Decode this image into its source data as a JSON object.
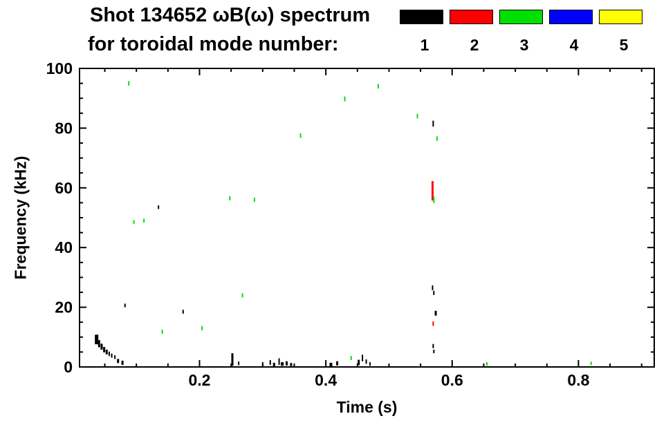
{
  "title": {
    "line1": "Shot 134652 ωB(ω) spectrum",
    "line2": "for toroidal mode number:"
  },
  "legend": {
    "entries": [
      {
        "label": "1",
        "color": "#000000"
      },
      {
        "label": "2",
        "color": "#ff0000"
      },
      {
        "label": "3",
        "color": "#00e000"
      },
      {
        "label": "4",
        "color": "#0000ff"
      },
      {
        "label": "5",
        "color": "#ffff00"
      }
    ]
  },
  "chart_data": {
    "type": "scatter",
    "title": "Shot 134652 ωB(ω) spectrum for toroidal mode number:",
    "xlabel": "Time (s)",
    "ylabel": "Frequency (kHz)",
    "xlim": [
      0.01,
      0.92
    ],
    "ylim": [
      0,
      100
    ],
    "xticks": [
      0.2,
      0.4,
      0.6,
      0.8
    ],
    "yticks": [
      0,
      20,
      40,
      60,
      80,
      100
    ],
    "x_minor_step": 0.05,
    "y_minor_step": 5,
    "grid": false,
    "legend_position": "top-right",
    "point_format": "[time_s, freq_kHz, extent_kHz, width_px]",
    "series": [
      {
        "name": "n=1",
        "color": "#000000",
        "points": [
          [
            0.037,
            9.2,
            3.2,
            5
          ],
          [
            0.041,
            7.8,
            2.4,
            3
          ],
          [
            0.045,
            6.8,
            2.0,
            3
          ],
          [
            0.049,
            5.8,
            1.8,
            3
          ],
          [
            0.053,
            5.0,
            1.6,
            3
          ],
          [
            0.057,
            4.4,
            1.5,
            2
          ],
          [
            0.061,
            3.8,
            1.4,
            2
          ],
          [
            0.066,
            3.3,
            1.3,
            2
          ],
          [
            0.071,
            2.0,
            1.4,
            3
          ],
          [
            0.078,
            1.4,
            1.4,
            3
          ],
          [
            0.082,
            20.6,
            1.2,
            2
          ],
          [
            0.135,
            53.5,
            1.2,
            2
          ],
          [
            0.174,
            18.5,
            1.3,
            2
          ],
          [
            0.252,
            2.5,
            4.2,
            3
          ],
          [
            0.262,
            1.2,
            1.2,
            2
          ],
          [
            0.3,
            1.0,
            1.2,
            2
          ],
          [
            0.312,
            1.5,
            1.6,
            2
          ],
          [
            0.318,
            0.8,
            1.2,
            3
          ],
          [
            0.326,
            1.8,
            2.2,
            2
          ],
          [
            0.331,
            1.0,
            1.2,
            4
          ],
          [
            0.338,
            1.2,
            1.4,
            3
          ],
          [
            0.345,
            0.8,
            1.0,
            3
          ],
          [
            0.408,
            0.8,
            1.2,
            4
          ],
          [
            0.418,
            1.2,
            1.4,
            3
          ],
          [
            0.452,
            1.5,
            1.8,
            3
          ],
          [
            0.458,
            3.0,
            2.2,
            2
          ],
          [
            0.464,
            1.8,
            1.5,
            2
          ],
          [
            0.47,
            1.0,
            1.2,
            2
          ],
          [
            0.57,
            81.5,
            2.0,
            2
          ],
          [
            0.569,
            26.5,
            1.6,
            2
          ],
          [
            0.571,
            24.8,
            1.4,
            2
          ],
          [
            0.574,
            18.0,
            1.6,
            3
          ],
          [
            0.57,
            7.0,
            1.4,
            2
          ],
          [
            0.571,
            5.2,
            1.2,
            2
          ]
        ]
      },
      {
        "name": "n=2",
        "color": "#ff0000",
        "points": [
          [
            0.569,
            59.0,
            6.5,
            3
          ],
          [
            0.57,
            14.5,
            1.5,
            2
          ]
        ]
      },
      {
        "name": "n=3",
        "color": "#00e000",
        "points": [
          [
            0.088,
            95.0,
            1.5,
            2
          ],
          [
            0.096,
            48.5,
            1.3,
            2
          ],
          [
            0.112,
            49.0,
            1.3,
            2
          ],
          [
            0.141,
            11.8,
            1.4,
            2
          ],
          [
            0.204,
            13.0,
            1.4,
            2
          ],
          [
            0.248,
            56.5,
            1.4,
            2
          ],
          [
            0.268,
            24.0,
            1.4,
            2
          ],
          [
            0.287,
            56.0,
            1.4,
            2
          ],
          [
            0.36,
            77.5,
            1.5,
            2
          ],
          [
            0.44,
            3.0,
            1.4,
            2
          ],
          [
            0.43,
            89.8,
            1.6,
            2
          ],
          [
            0.483,
            94.0,
            1.5,
            2
          ],
          [
            0.545,
            84.0,
            1.5,
            2
          ],
          [
            0.571,
            56.0,
            2.2,
            2
          ],
          [
            0.576,
            76.5,
            1.5,
            2
          ],
          [
            0.655,
            1.0,
            1.2,
            2
          ],
          [
            0.82,
            1.2,
            1.2,
            2
          ]
        ]
      },
      {
        "name": "n=4",
        "color": "#0000ff",
        "points": []
      },
      {
        "name": "n=5",
        "color": "#ffff00",
        "points": []
      }
    ]
  }
}
